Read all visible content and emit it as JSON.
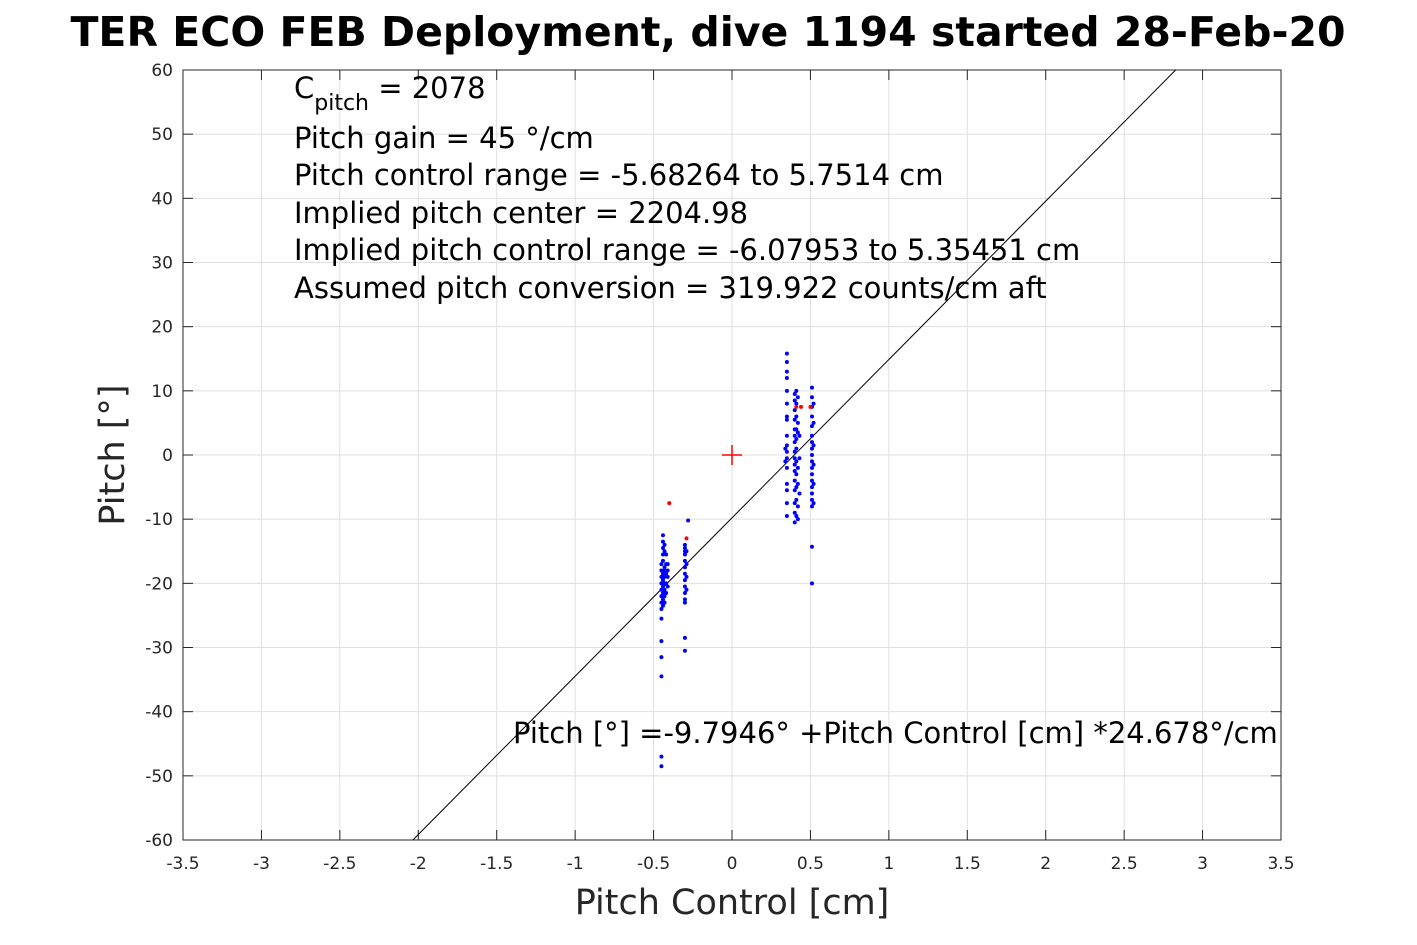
{
  "chart_data": {
    "type": "scatter",
    "title": "TER ECO FEB Deployment, dive 1194 started 28-Feb-20",
    "xlabel": "Pitch Control [cm]",
    "ylabel": "Pitch [°]",
    "xlim": [
      -3.5,
      3.5
    ],
    "ylim": [
      -60,
      60
    ],
    "xticks": [
      "-3.5",
      "-3",
      "-2.5",
      "-2",
      "-1.5",
      "-1",
      "-0.5",
      "0",
      "0.5",
      "1",
      "1.5",
      "2",
      "2.5",
      "3",
      "3.5"
    ],
    "yticks": [
      "60",
      "50",
      "40",
      "30",
      "20",
      "10",
      "0",
      "-10",
      "-20",
      "-30",
      "-40",
      "-50",
      "-60"
    ],
    "grid": true,
    "annotation_lines": [
      {
        "base": "C",
        "sub": "pitch",
        "rest": " = 2078"
      },
      {
        "text": "Pitch gain = 45 °/cm"
      },
      {
        "text": "Pitch control range = -5.68264 to 5.7514 cm"
      },
      {
        "text": "Implied pitch center = 2204.98"
      },
      {
        "text": "Implied pitch control range = -6.07953 to 5.35451 cm"
      },
      {
        "text": "Assumed pitch conversion = 319.922 counts/cm aft"
      }
    ],
    "fit_label": "Pitch [°] =-9.7946° +Pitch Control [cm] *24.678°/cm",
    "fit": {
      "intercept": -9.7946,
      "slope": 24.678
    },
    "center_marker": {
      "x": 0,
      "y": 0
    },
    "series": [
      {
        "color": "#0000ff",
        "points": [
          [
            -0.45,
            -17
          ],
          [
            -0.45,
            -18
          ],
          [
            -0.45,
            -19
          ],
          [
            -0.45,
            -20
          ],
          [
            -0.45,
            -21
          ],
          [
            -0.45,
            -22
          ],
          [
            -0.45,
            -23
          ],
          [
            -0.45,
            -24
          ],
          [
            -0.45,
            -25.5
          ],
          [
            -0.45,
            -29
          ],
          [
            -0.45,
            -31.5
          ],
          [
            -0.45,
            -34.5
          ],
          [
            -0.45,
            -47
          ],
          [
            -0.45,
            -48.5
          ],
          [
            -0.44,
            -12.5
          ],
          [
            -0.44,
            -13.5
          ],
          [
            -0.44,
            -14.5
          ],
          [
            -0.44,
            -15.5
          ],
          [
            -0.44,
            -16.5
          ],
          [
            -0.44,
            -18.5
          ],
          [
            -0.44,
            -19.5
          ],
          [
            -0.44,
            -20.5
          ],
          [
            -0.44,
            -21.5
          ],
          [
            -0.44,
            -22.5
          ],
          [
            -0.44,
            -23.5
          ],
          [
            -0.43,
            -14
          ],
          [
            -0.43,
            -15
          ],
          [
            -0.43,
            -17.5
          ],
          [
            -0.43,
            -18
          ],
          [
            -0.43,
            -19
          ],
          [
            -0.43,
            -20
          ],
          [
            -0.43,
            -21
          ],
          [
            -0.43,
            -22
          ],
          [
            -0.43,
            -23
          ],
          [
            -0.42,
            -15.5
          ],
          [
            -0.42,
            -17
          ],
          [
            -0.42,
            -18.5
          ],
          [
            -0.42,
            -20
          ],
          [
            -0.42,
            -21.5
          ],
          [
            -0.41,
            -17
          ],
          [
            -0.41,
            -18
          ],
          [
            -0.41,
            -19
          ],
          [
            -0.41,
            -20.5
          ],
          [
            -0.3,
            -14
          ],
          [
            -0.3,
            -14.5
          ],
          [
            -0.3,
            -15
          ],
          [
            -0.3,
            -15.5
          ],
          [
            -0.3,
            -16.5
          ],
          [
            -0.3,
            -17.5
          ],
          [
            -0.3,
            -18.5
          ],
          [
            -0.3,
            -19.5
          ],
          [
            -0.3,
            -20.5
          ],
          [
            -0.3,
            -21.5
          ],
          [
            -0.3,
            -22.5
          ],
          [
            -0.3,
            -23
          ],
          [
            -0.3,
            -28.5
          ],
          [
            -0.3,
            -30.5
          ],
          [
            -0.29,
            -15
          ],
          [
            -0.29,
            -17
          ],
          [
            -0.29,
            -19
          ],
          [
            -0.29,
            -21
          ],
          [
            -0.28,
            -10.2
          ],
          [
            0.35,
            15.8
          ],
          [
            0.35,
            14.5
          ],
          [
            0.35,
            13
          ],
          [
            0.35,
            12
          ],
          [
            0.35,
            10
          ],
          [
            0.35,
            8
          ],
          [
            0.35,
            6
          ],
          [
            0.35,
            5.5
          ],
          [
            0.35,
            3
          ],
          [
            0.35,
            1.5
          ],
          [
            0.35,
            0.5
          ],
          [
            0.35,
            -0.5
          ],
          [
            0.35,
            -2
          ],
          [
            0.35,
            -4.5
          ],
          [
            0.35,
            -5.5
          ],
          [
            0.35,
            -7.5
          ],
          [
            0.35,
            -9.5
          ],
          [
            0.34,
            1
          ],
          [
            0.34,
            -1
          ],
          [
            0.4,
            9.5
          ],
          [
            0.4,
            8.5
          ],
          [
            0.4,
            7
          ],
          [
            0.4,
            5.5
          ],
          [
            0.4,
            4
          ],
          [
            0.4,
            3
          ],
          [
            0.4,
            2
          ],
          [
            0.4,
            0.5
          ],
          [
            0.4,
            -0.5
          ],
          [
            0.4,
            -1.5
          ],
          [
            0.4,
            -2.5
          ],
          [
            0.4,
            -4
          ],
          [
            0.4,
            -5.5
          ],
          [
            0.4,
            -7.5
          ],
          [
            0.4,
            -9
          ],
          [
            0.4,
            -10.5
          ],
          [
            0.41,
            10
          ],
          [
            0.41,
            8
          ],
          [
            0.41,
            6
          ],
          [
            0.41,
            4
          ],
          [
            0.41,
            2.5
          ],
          [
            0.41,
            1
          ],
          [
            0.41,
            -1
          ],
          [
            0.41,
            -3
          ],
          [
            0.41,
            -5
          ],
          [
            0.41,
            -7
          ],
          [
            0.41,
            -9.5
          ],
          [
            0.42,
            9
          ],
          [
            0.42,
            5
          ],
          [
            0.42,
            3.5
          ],
          [
            0.42,
            -2
          ],
          [
            0.42,
            -4.5
          ],
          [
            0.42,
            -8
          ],
          [
            0.42,
            -10
          ],
          [
            0.43,
            3
          ],
          [
            0.43,
            -0.5
          ],
          [
            0.43,
            -6
          ],
          [
            0.51,
            10.5
          ],
          [
            0.51,
            9
          ],
          [
            0.51,
            7.5
          ],
          [
            0.51,
            6
          ],
          [
            0.51,
            4.5
          ],
          [
            0.51,
            3
          ],
          [
            0.51,
            2
          ],
          [
            0.51,
            1
          ],
          [
            0.51,
            0
          ],
          [
            0.51,
            -1
          ],
          [
            0.51,
            -2
          ],
          [
            0.51,
            -3
          ],
          [
            0.51,
            -4
          ],
          [
            0.51,
            -5
          ],
          [
            0.51,
            -6
          ],
          [
            0.51,
            -7
          ],
          [
            0.51,
            -8
          ],
          [
            0.51,
            -14.3
          ],
          [
            0.51,
            -20
          ],
          [
            0.52,
            8
          ],
          [
            0.52,
            5
          ],
          [
            0.52,
            1.5
          ],
          [
            0.52,
            -1.5
          ],
          [
            0.52,
            -4.5
          ],
          [
            0.52,
            -7.5
          ]
        ]
      },
      {
        "color": "#ff0000",
        "points": [
          [
            -0.4,
            -7.5
          ],
          [
            -0.29,
            -13
          ],
          [
            0.41,
            7.5
          ],
          [
            0.44,
            7.5
          ],
          [
            0.5,
            7.5
          ]
        ]
      }
    ]
  }
}
